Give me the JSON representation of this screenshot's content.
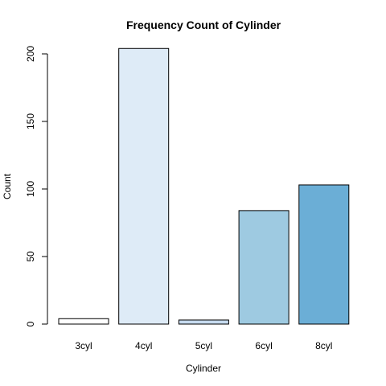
{
  "chart_data": {
    "type": "bar",
    "title": "Frequency Count of Cylinder",
    "xlabel": "Cylinder",
    "ylabel": "Count",
    "categories": [
      "3cyl",
      "4cyl",
      "5cyl",
      "6cyl",
      "8cyl"
    ],
    "values": [
      4,
      204,
      3,
      84,
      103
    ],
    "ylim": [
      0,
      200
    ],
    "yticks": [
      "0",
      "50",
      "100",
      "150",
      "200"
    ],
    "colors": [
      "#ffffff",
      "#deebf7",
      "#c6dbef",
      "#9ecae1",
      "#6baed6"
    ],
    "grid": false,
    "legend": "none"
  }
}
